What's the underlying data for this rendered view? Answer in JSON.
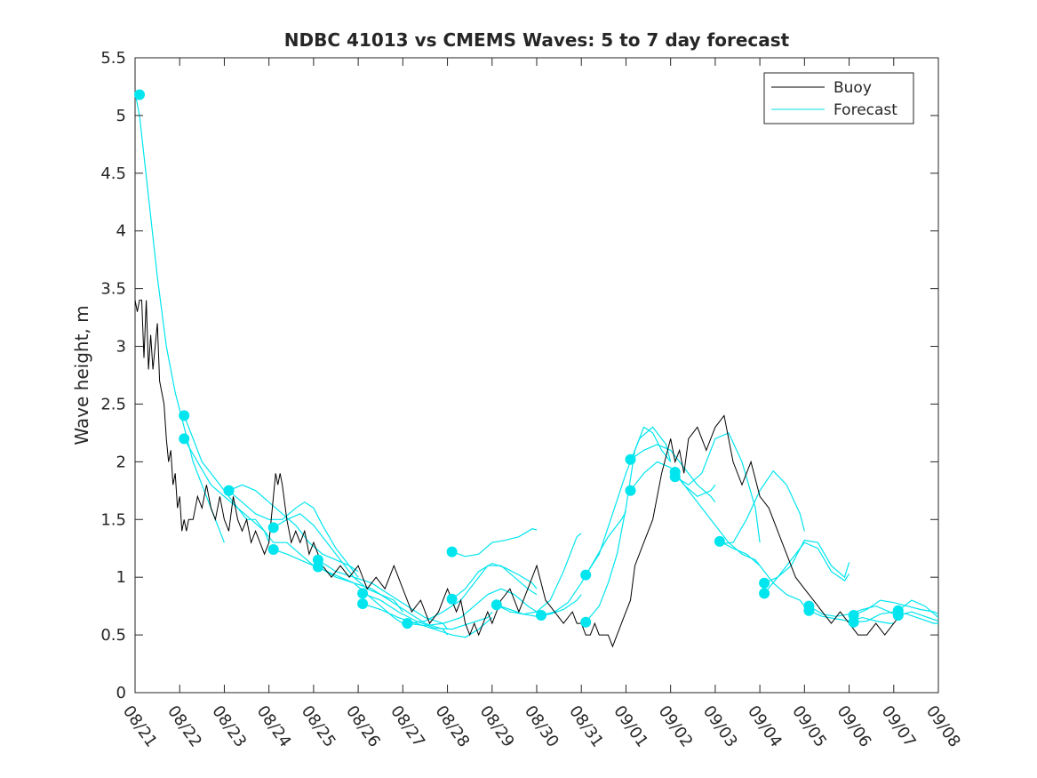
{
  "chart_data": {
    "type": "line",
    "title": "NDBC 41013 vs CMEMS Waves: 5 to 7 day forecast",
    "xlabel": "",
    "ylabel": "Wave height, m",
    "xlim": [
      0,
      18
    ],
    "ylim": [
      0,
      5.5
    ],
    "x_tick_values": [
      0,
      1,
      2,
      3,
      4,
      5,
      6,
      7,
      8,
      9,
      10,
      11,
      12,
      13,
      14,
      15,
      16,
      17,
      18
    ],
    "x_tick_labels": [
      "08/21",
      "08/22",
      "08/23",
      "08/24",
      "08/25",
      "08/26",
      "08/27",
      "08/28",
      "08/29",
      "08/30",
      "08/31",
      "09/01",
      "09/02",
      "09/03",
      "09/04",
      "09/05",
      "09/06",
      "09/07",
      "09/08"
    ],
    "y_tick_values": [
      0,
      0.5,
      1,
      1.5,
      2,
      2.5,
      3,
      3.5,
      4,
      4.5,
      5,
      5.5
    ],
    "y_tick_labels": [
      "0",
      "0.5",
      "1",
      "1.5",
      "2",
      "2.5",
      "3",
      "3.5",
      "4",
      "4.5",
      "5",
      "5.5"
    ],
    "grid": false,
    "legend": {
      "position": "top-right",
      "entries": [
        {
          "name": "Buoy",
          "color": "#000000"
        },
        {
          "name": "Forecast",
          "color": "#00e5ee"
        }
      ]
    },
    "colors": {
      "buoy": "#000000",
      "forecast": "#00e5ee",
      "marker": "#00e5ee"
    },
    "buoy": {
      "name": "Buoy",
      "x": [
        0,
        0.05,
        0.1,
        0.15,
        0.2,
        0.25,
        0.3,
        0.35,
        0.4,
        0.45,
        0.5,
        0.55,
        0.6,
        0.65,
        0.7,
        0.75,
        0.8,
        0.85,
        0.9,
        0.95,
        1.0,
        1.05,
        1.1,
        1.15,
        1.2,
        1.3,
        1.4,
        1.5,
        1.6,
        1.7,
        1.8,
        1.9,
        2.0,
        2.1,
        2.2,
        2.3,
        2.4,
        2.5,
        2.6,
        2.7,
        2.8,
        2.9,
        3.0,
        3.05,
        3.1,
        3.15,
        3.2,
        3.25,
        3.3,
        3.4,
        3.5,
        3.6,
        3.7,
        3.8,
        3.9,
        4.0,
        4.2,
        4.4,
        4.6,
        4.8,
        5.0,
        5.2,
        5.4,
        5.6,
        5.8,
        6.0,
        6.2,
        6.4,
        6.6,
        6.8,
        6.9,
        7.0,
        7.1,
        7.2,
        7.3,
        7.4,
        7.5,
        7.6,
        7.7,
        7.8,
        7.9,
        8.0,
        8.2,
        8.4,
        8.6,
        8.8,
        9.0,
        9.2,
        9.4,
        9.6,
        9.8,
        9.9,
        10.0,
        10.1,
        10.2,
        10.3,
        10.4,
        10.5,
        10.6,
        10.7,
        10.8,
        10.9,
        11.0,
        11.1,
        11.2,
        11.4,
        11.6,
        11.8,
        12.0,
        12.1,
        12.2,
        12.3,
        12.4,
        12.6,
        12.8,
        13.0,
        13.2,
        13.4,
        13.6,
        13.8,
        14.0,
        14.2,
        14.4,
        14.6,
        14.8,
        15.0,
        15.2,
        15.4,
        15.6,
        15.8,
        16.0,
        16.2,
        16.4,
        16.6,
        16.8,
        17.0,
        17.2
      ],
      "y": [
        3.4,
        3.3,
        3.4,
        3.4,
        2.9,
        3.4,
        2.8,
        3.1,
        2.8,
        3.0,
        3.2,
        2.7,
        2.6,
        2.5,
        2.2,
        2.0,
        2.1,
        1.8,
        1.9,
        1.6,
        1.7,
        1.4,
        1.5,
        1.4,
        1.5,
        1.5,
        1.7,
        1.6,
        1.8,
        1.6,
        1.5,
        1.7,
        1.5,
        1.4,
        1.7,
        1.5,
        1.4,
        1.5,
        1.3,
        1.4,
        1.3,
        1.2,
        1.3,
        1.5,
        1.7,
        1.9,
        1.8,
        1.9,
        1.8,
        1.5,
        1.3,
        1.4,
        1.3,
        1.4,
        1.2,
        1.3,
        1.1,
        1.0,
        1.1,
        1.0,
        1.1,
        0.9,
        1.0,
        0.9,
        1.1,
        0.9,
        0.7,
        0.8,
        0.6,
        0.7,
        0.8,
        0.9,
        0.8,
        0.7,
        0.8,
        0.6,
        0.5,
        0.6,
        0.5,
        0.6,
        0.7,
        0.6,
        0.8,
        0.9,
        0.7,
        0.9,
        1.1,
        0.8,
        0.7,
        0.6,
        0.7,
        0.6,
        0.6,
        0.5,
        0.5,
        0.6,
        0.5,
        0.5,
        0.5,
        0.4,
        0.5,
        0.6,
        0.7,
        0.8,
        1.1,
        1.3,
        1.5,
        1.9,
        2.2,
        2.0,
        2.1,
        1.9,
        2.2,
        2.3,
        2.1,
        2.3,
        2.4,
        2.0,
        1.8,
        2.0,
        1.7,
        1.6,
        1.4,
        1.2,
        1.0,
        0.9,
        0.8,
        0.7,
        0.6,
        0.7,
        0.6,
        0.5,
        0.5,
        0.6,
        0.5,
        0.6,
        0.7
      ]
    },
    "forecasts": [
      {
        "name": "Forecast",
        "x": [
          0,
          0.1,
          0.3,
          0.5,
          0.7,
          0.9,
          1.1,
          1.3,
          1.5,
          1.7,
          1.9,
          2.0
        ],
        "y": [
          5.2,
          5.0,
          4.3,
          3.6,
          3.0,
          2.6,
          2.3,
          2.0,
          1.8,
          1.6,
          1.4,
          1.3
        ]
      },
      {
        "name": "Forecast",
        "x": [
          1.1,
          1.3,
          1.5,
          1.7,
          1.9,
          2.1,
          2.3,
          2.5,
          2.7,
          2.9,
          3.0
        ],
        "y": [
          2.4,
          2.2,
          2.0,
          1.9,
          1.8,
          1.7,
          1.6,
          1.5,
          1.5,
          1.4,
          1.3
        ]
      },
      {
        "name": "Forecast",
        "x": [
          1.1,
          1.4,
          1.7,
          2.0,
          2.3,
          2.6,
          2.9,
          3.1,
          3.4,
          3.7,
          4.0
        ],
        "y": [
          2.2,
          2.0,
          1.8,
          1.7,
          1.6,
          1.5,
          1.4,
          1.3,
          1.3,
          1.2,
          1.1
        ]
      },
      {
        "name": "Forecast",
        "x": [
          2.1,
          2.4,
          2.7,
          3.0,
          3.3,
          3.6,
          3.9,
          4.2,
          4.5,
          4.8,
          5.0
        ],
        "y": [
          1.75,
          1.8,
          1.75,
          1.65,
          1.55,
          1.45,
          1.3,
          1.2,
          1.15,
          1.1,
          1.05
        ]
      },
      {
        "name": "Forecast",
        "x": [
          2.1,
          2.4,
          2.7,
          3.0,
          3.3,
          3.6,
          3.8,
          4.0,
          4.2,
          4.5,
          4.8,
          5.0
        ],
        "y": [
          1.75,
          1.65,
          1.55,
          1.5,
          1.5,
          1.6,
          1.65,
          1.6,
          1.45,
          1.25,
          1.1,
          1.0
        ]
      },
      {
        "name": "Forecast",
        "x": [
          3.1,
          3.4,
          3.7,
          4.0,
          4.3,
          4.6,
          4.9,
          5.2,
          5.5,
          5.8,
          6.0
        ],
        "y": [
          1.43,
          1.5,
          1.55,
          1.45,
          1.3,
          1.15,
          1.0,
          0.9,
          0.85,
          0.8,
          0.7
        ]
      },
      {
        "name": "Forecast",
        "x": [
          3.1,
          3.4,
          3.7,
          4.0,
          4.3,
          4.6,
          4.9,
          5.2,
          5.5,
          5.8,
          6.0
        ],
        "y": [
          1.24,
          1.2,
          1.15,
          1.1,
          1.05,
          1.0,
          0.95,
          0.85,
          0.75,
          0.65,
          0.6
        ]
      },
      {
        "name": "Forecast",
        "x": [
          4.1,
          4.5,
          4.9,
          5.3,
          5.7,
          6.1,
          6.5,
          6.9,
          7.0
        ],
        "y": [
          1.15,
          1.05,
          1.0,
          0.95,
          0.85,
          0.75,
          0.65,
          0.6,
          0.55
        ]
      },
      {
        "name": "Forecast",
        "x": [
          4.1,
          4.5,
          4.9,
          5.3,
          5.7,
          6.1,
          6.5,
          6.9,
          7.0
        ],
        "y": [
          1.09,
          1.0,
          0.95,
          0.9,
          0.8,
          0.7,
          0.6,
          0.55,
          0.5
        ]
      },
      {
        "name": "Forecast",
        "x": [
          5.1,
          5.5,
          5.9,
          6.3,
          6.7,
          7.1,
          7.5,
          7.9,
          8.0
        ],
        "y": [
          0.86,
          0.8,
          0.7,
          0.62,
          0.56,
          0.55,
          0.6,
          0.65,
          0.7
        ]
      },
      {
        "name": "Forecast",
        "x": [
          5.1,
          5.5,
          5.9,
          6.3,
          6.7,
          7.1,
          7.4,
          7.7,
          8.0
        ],
        "y": [
          0.77,
          0.72,
          0.65,
          0.6,
          0.55,
          0.5,
          0.48,
          0.55,
          0.65
        ]
      },
      {
        "name": "Forecast",
        "x": [
          6.1,
          6.5,
          6.9,
          7.3,
          7.6,
          7.9,
          8.2,
          8.5,
          8.8,
          9.0
        ],
        "y": [
          0.6,
          0.62,
          0.7,
          0.8,
          0.95,
          1.1,
          1.1,
          1.0,
          0.9,
          0.85
        ]
      },
      {
        "name": "Forecast",
        "x": [
          6.1,
          6.5,
          6.9,
          7.3,
          7.6,
          7.9,
          8.2,
          8.5,
          8.8,
          9.0
        ],
        "y": [
          0.6,
          0.58,
          0.6,
          0.65,
          0.75,
          0.85,
          0.9,
          0.85,
          0.75,
          0.7
        ]
      },
      {
        "name": "Forecast",
        "x": [
          7.1,
          7.4,
          7.7,
          8.0,
          8.3,
          8.6,
          8.9,
          9.0
        ],
        "y": [
          1.22,
          1.18,
          1.2,
          1.3,
          1.32,
          1.35,
          1.42,
          1.41
        ]
      },
      {
        "name": "Forecast",
        "x": [
          7.1,
          7.4,
          7.7,
          8.0,
          8.3,
          8.6,
          8.9,
          9.0
        ],
        "y": [
          0.81,
          0.9,
          1.05,
          1.12,
          1.08,
          1.02,
          0.95,
          0.9
        ]
      },
      {
        "name": "Forecast",
        "x": [
          8.1,
          8.4,
          8.7,
          9.0,
          9.3,
          9.6,
          9.9,
          10.0
        ],
        "y": [
          0.76,
          0.72,
          0.68,
          0.7,
          0.8,
          1.05,
          1.35,
          1.38
        ]
      },
      {
        "name": "Forecast",
        "x": [
          8.1,
          8.4,
          8.7,
          9.0,
          9.3,
          9.6,
          9.9,
          10.0
        ],
        "y": [
          0.76,
          0.7,
          0.68,
          0.66,
          0.68,
          0.72,
          0.8,
          0.85
        ]
      },
      {
        "name": "Forecast",
        "x": [
          9.1,
          9.4,
          9.7,
          10.0,
          10.3,
          10.6,
          10.9,
          11.0
        ],
        "y": [
          0.67,
          0.7,
          0.78,
          0.95,
          1.15,
          1.35,
          1.5,
          1.57
        ]
      },
      {
        "name": "Forecast",
        "x": [
          10.1,
          10.4,
          10.7,
          11.0,
          11.3,
          11.6,
          11.9,
          12.0
        ],
        "y": [
          1.02,
          1.2,
          1.55,
          1.9,
          2.2,
          2.3,
          2.15,
          2.0
        ]
      },
      {
        "name": "Forecast",
        "x": [
          10.1,
          10.4,
          10.6,
          10.8,
          11.0,
          11.2,
          11.4,
          11.6,
          11.8,
          12.0
        ],
        "y": [
          0.61,
          0.75,
          0.95,
          1.2,
          1.6,
          2.1,
          2.3,
          2.25,
          2.1,
          2.0
        ]
      },
      {
        "name": "Forecast",
        "x": [
          11.1,
          11.4,
          11.7,
          12.0,
          12.3,
          12.6,
          12.9,
          13.0
        ],
        "y": [
          2.02,
          2.1,
          2.15,
          2.1,
          1.95,
          1.8,
          1.7,
          1.65
        ]
      },
      {
        "name": "Forecast",
        "x": [
          11.1,
          11.4,
          11.7,
          12.0,
          12.3,
          12.6,
          12.9,
          13.0
        ],
        "y": [
          1.75,
          1.9,
          2.0,
          1.95,
          1.8,
          1.7,
          1.75,
          1.8
        ]
      },
      {
        "name": "Forecast",
        "x": [
          12.1,
          12.4,
          12.7,
          13.0,
          13.3,
          13.6,
          13.9,
          14.0
        ],
        "y": [
          1.91,
          1.75,
          1.6,
          1.45,
          1.3,
          1.2,
          1.15,
          1.1
        ]
      },
      {
        "name": "Forecast",
        "x": [
          12.1,
          12.4,
          12.7,
          13.0,
          13.3,
          13.6,
          13.9,
          14.0
        ],
        "y": [
          1.87,
          1.8,
          1.9,
          2.2,
          2.25,
          2.0,
          1.6,
          1.3
        ]
      },
      {
        "name": "Forecast",
        "x": [
          13.1,
          13.4,
          13.7,
          14.0,
          14.3,
          14.6,
          14.9,
          15.0
        ],
        "y": [
          1.31,
          1.25,
          1.2,
          1.1,
          0.95,
          0.85,
          0.8,
          0.75
        ]
      },
      {
        "name": "Forecast",
        "x": [
          13.1,
          13.4,
          13.7,
          14.0,
          14.3,
          14.6,
          14.9,
          15.0
        ],
        "y": [
          1.29,
          1.3,
          1.5,
          1.75,
          1.92,
          1.8,
          1.55,
          1.4
        ]
      },
      {
        "name": "Forecast",
        "x": [
          14.1,
          14.4,
          14.7,
          15.0,
          15.3,
          15.6,
          15.9,
          16.0
        ],
        "y": [
          0.95,
          1.0,
          1.15,
          1.3,
          1.25,
          1.05,
          0.97,
          1.03
        ]
      },
      {
        "name": "Forecast",
        "x": [
          14.1,
          14.4,
          14.7,
          15.0,
          15.3,
          15.6,
          15.9,
          16.0
        ],
        "y": [
          0.86,
          1.0,
          1.1,
          1.32,
          1.3,
          1.1,
          1.0,
          1.13
        ]
      },
      {
        "name": "Forecast",
        "x": [
          15.1,
          15.4,
          15.7,
          16.0,
          16.3,
          16.6,
          16.9,
          17.0
        ],
        "y": [
          0.75,
          0.68,
          0.66,
          0.68,
          0.72,
          0.75,
          0.7,
          0.68
        ]
      },
      {
        "name": "Forecast",
        "x": [
          15.1,
          15.4,
          15.7,
          16.0,
          16.3,
          16.6,
          16.9,
          17.0
        ],
        "y": [
          0.71,
          0.66,
          0.64,
          0.62,
          0.65,
          0.62,
          0.6,
          0.6
        ]
      },
      {
        "name": "Forecast",
        "x": [
          16.1,
          16.4,
          16.7,
          17.0,
          17.3,
          17.6,
          17.9,
          18.0
        ],
        "y": [
          0.67,
          0.72,
          0.8,
          0.78,
          0.75,
          0.72,
          0.7,
          0.68
        ]
      },
      {
        "name": "Forecast",
        "x": [
          16.1,
          16.4,
          16.7,
          17.0,
          17.3,
          17.6,
          17.9,
          18.0
        ],
        "y": [
          0.61,
          0.62,
          0.68,
          0.7,
          0.68,
          0.64,
          0.6,
          0.6
        ]
      },
      {
        "name": "Forecast",
        "x": [
          17.1,
          17.4,
          17.7,
          18.0
        ],
        "y": [
          0.71,
          0.8,
          0.75,
          0.65
        ]
      },
      {
        "name": "Forecast",
        "x": [
          17.1,
          17.4,
          17.7,
          18.0
        ],
        "y": [
          0.67,
          0.7,
          0.66,
          0.62
        ]
      }
    ],
    "forecast_start_points": {
      "x": [
        0.1,
        1.1,
        1.1,
        2.1,
        2.1,
        3.1,
        3.1,
        4.1,
        4.1,
        5.1,
        5.1,
        6.1,
        7.1,
        7.1,
        8.1,
        9.1,
        10.1,
        10.1,
        11.1,
        11.1,
        12.1,
        12.1,
        13.1,
        14.1,
        14.1,
        15.1,
        15.1,
        16.1,
        16.1,
        17.1,
        17.1
      ],
      "y": [
        5.18,
        2.4,
        2.2,
        1.75,
        1.75,
        1.43,
        1.24,
        1.15,
        1.09,
        0.86,
        0.77,
        0.6,
        1.22,
        0.81,
        0.76,
        0.67,
        1.02,
        0.61,
        2.02,
        1.75,
        1.91,
        1.87,
        1.31,
        0.95,
        0.86,
        0.75,
        0.71,
        0.67,
        0.61,
        0.71,
        0.67
      ]
    }
  }
}
